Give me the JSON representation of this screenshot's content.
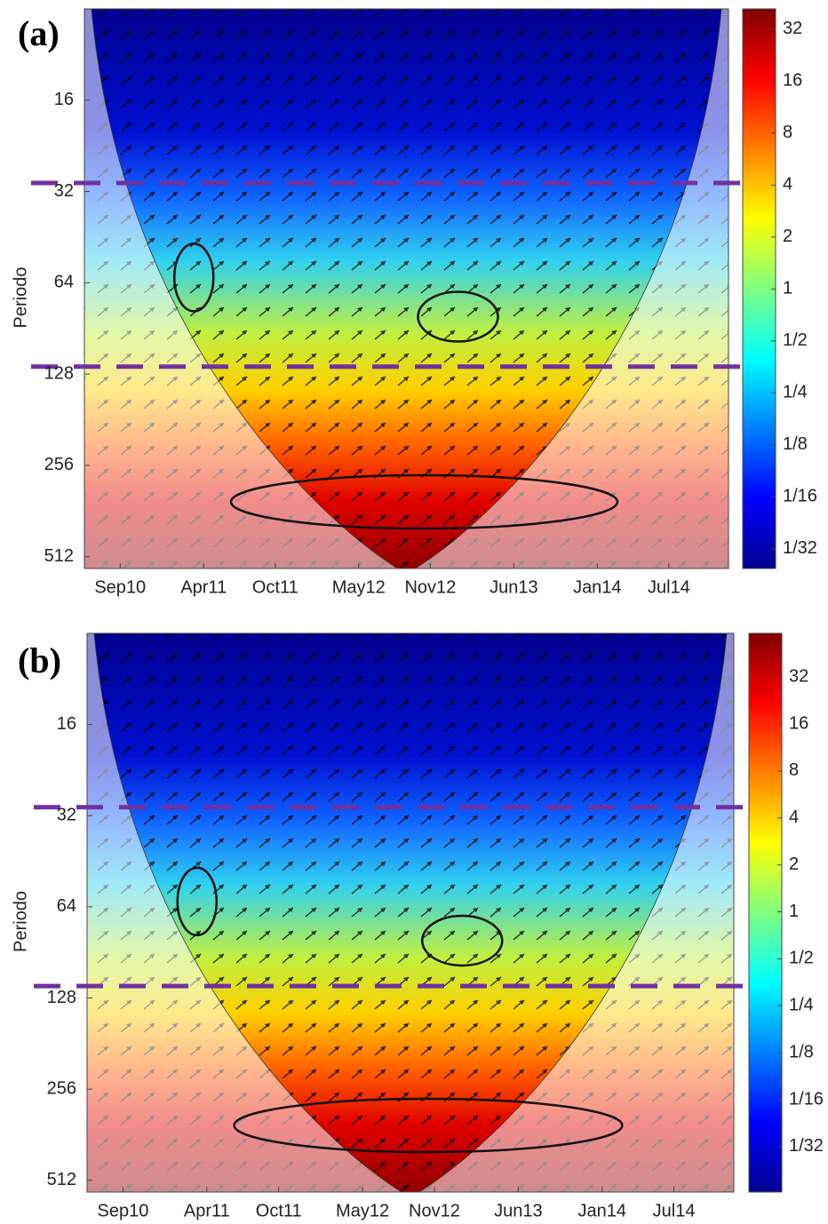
{
  "chart_data": [
    {
      "type": "heatmap",
      "panel_label": "(a)",
      "ylabel": "Periodo",
      "yscale": "log2",
      "ylim": [
        8,
        560
      ],
      "yticks": [
        16,
        32,
        64,
        128,
        256,
        512
      ],
      "xlim": [
        "2010-06",
        "2014-12"
      ],
      "xticks": [
        {
          "value": "2010-09",
          "label": "Sep10"
        },
        {
          "value": "2011-04",
          "label": "Apr11"
        },
        {
          "value": "2011-10",
          "label": "Oct11"
        },
        {
          "value": "2012-05",
          "label": "May12"
        },
        {
          "value": "2012-11",
          "label": "Nov12"
        },
        {
          "value": "2013-06",
          "label": "Jun13"
        },
        {
          "value": "2014-01",
          "label": "Jan14"
        },
        {
          "value": "2014-07",
          "label": "Jul14"
        }
      ],
      "colorbar": {
        "colormap": "jet",
        "scale": "log2",
        "lim": [
          0.024,
          42
        ],
        "ticks": [
          {
            "value": 0.03125,
            "label": "1/32"
          },
          {
            "value": 0.0625,
            "label": "1/16"
          },
          {
            "value": 0.125,
            "label": "1/8"
          },
          {
            "value": 0.25,
            "label": "1/4"
          },
          {
            "value": 0.5,
            "label": "1/2"
          },
          1,
          2,
          4,
          8,
          16,
          32
        ]
      },
      "reference_lines": {
        "color": "#7030a0",
        "values": [
          30,
          121
        ]
      }
    },
    {
      "type": "heatmap",
      "panel_label": "(b)",
      "ylabel": "Periodo",
      "yscale": "log2",
      "ylim": [
        8,
        560
      ],
      "yticks": [
        16,
        32,
        64,
        128,
        256,
        512
      ],
      "xlim": [
        "2010-06",
        "2014-12"
      ],
      "xticks": [
        {
          "value": "2010-09",
          "label": "Sep10"
        },
        {
          "value": "2011-04",
          "label": "Apr11"
        },
        {
          "value": "2011-10",
          "label": "Oct11"
        },
        {
          "value": "2012-05",
          "label": "May12"
        },
        {
          "value": "2012-11",
          "label": "Nov12"
        },
        {
          "value": "2013-06",
          "label": "Jun13"
        },
        {
          "value": "2014-01",
          "label": "Jan14"
        },
        {
          "value": "2014-07",
          "label": "Jul14"
        }
      ],
      "colorbar": {
        "colormap": "jet",
        "scale": "log2",
        "lim": [
          0.016,
          61
        ],
        "ticks": [
          {
            "value": 0.03125,
            "label": "1/32"
          },
          {
            "value": 0.0625,
            "label": "1/16"
          },
          {
            "value": 0.125,
            "label": "1/8"
          },
          {
            "value": 0.25,
            "label": "1/4"
          },
          {
            "value": 0.5,
            "label": "1/2"
          },
          1,
          2,
          4,
          8,
          16,
          32
        ]
      },
      "reference_lines": {
        "color": "#7030a0",
        "values": [
          30,
          117
        ]
      }
    }
  ]
}
